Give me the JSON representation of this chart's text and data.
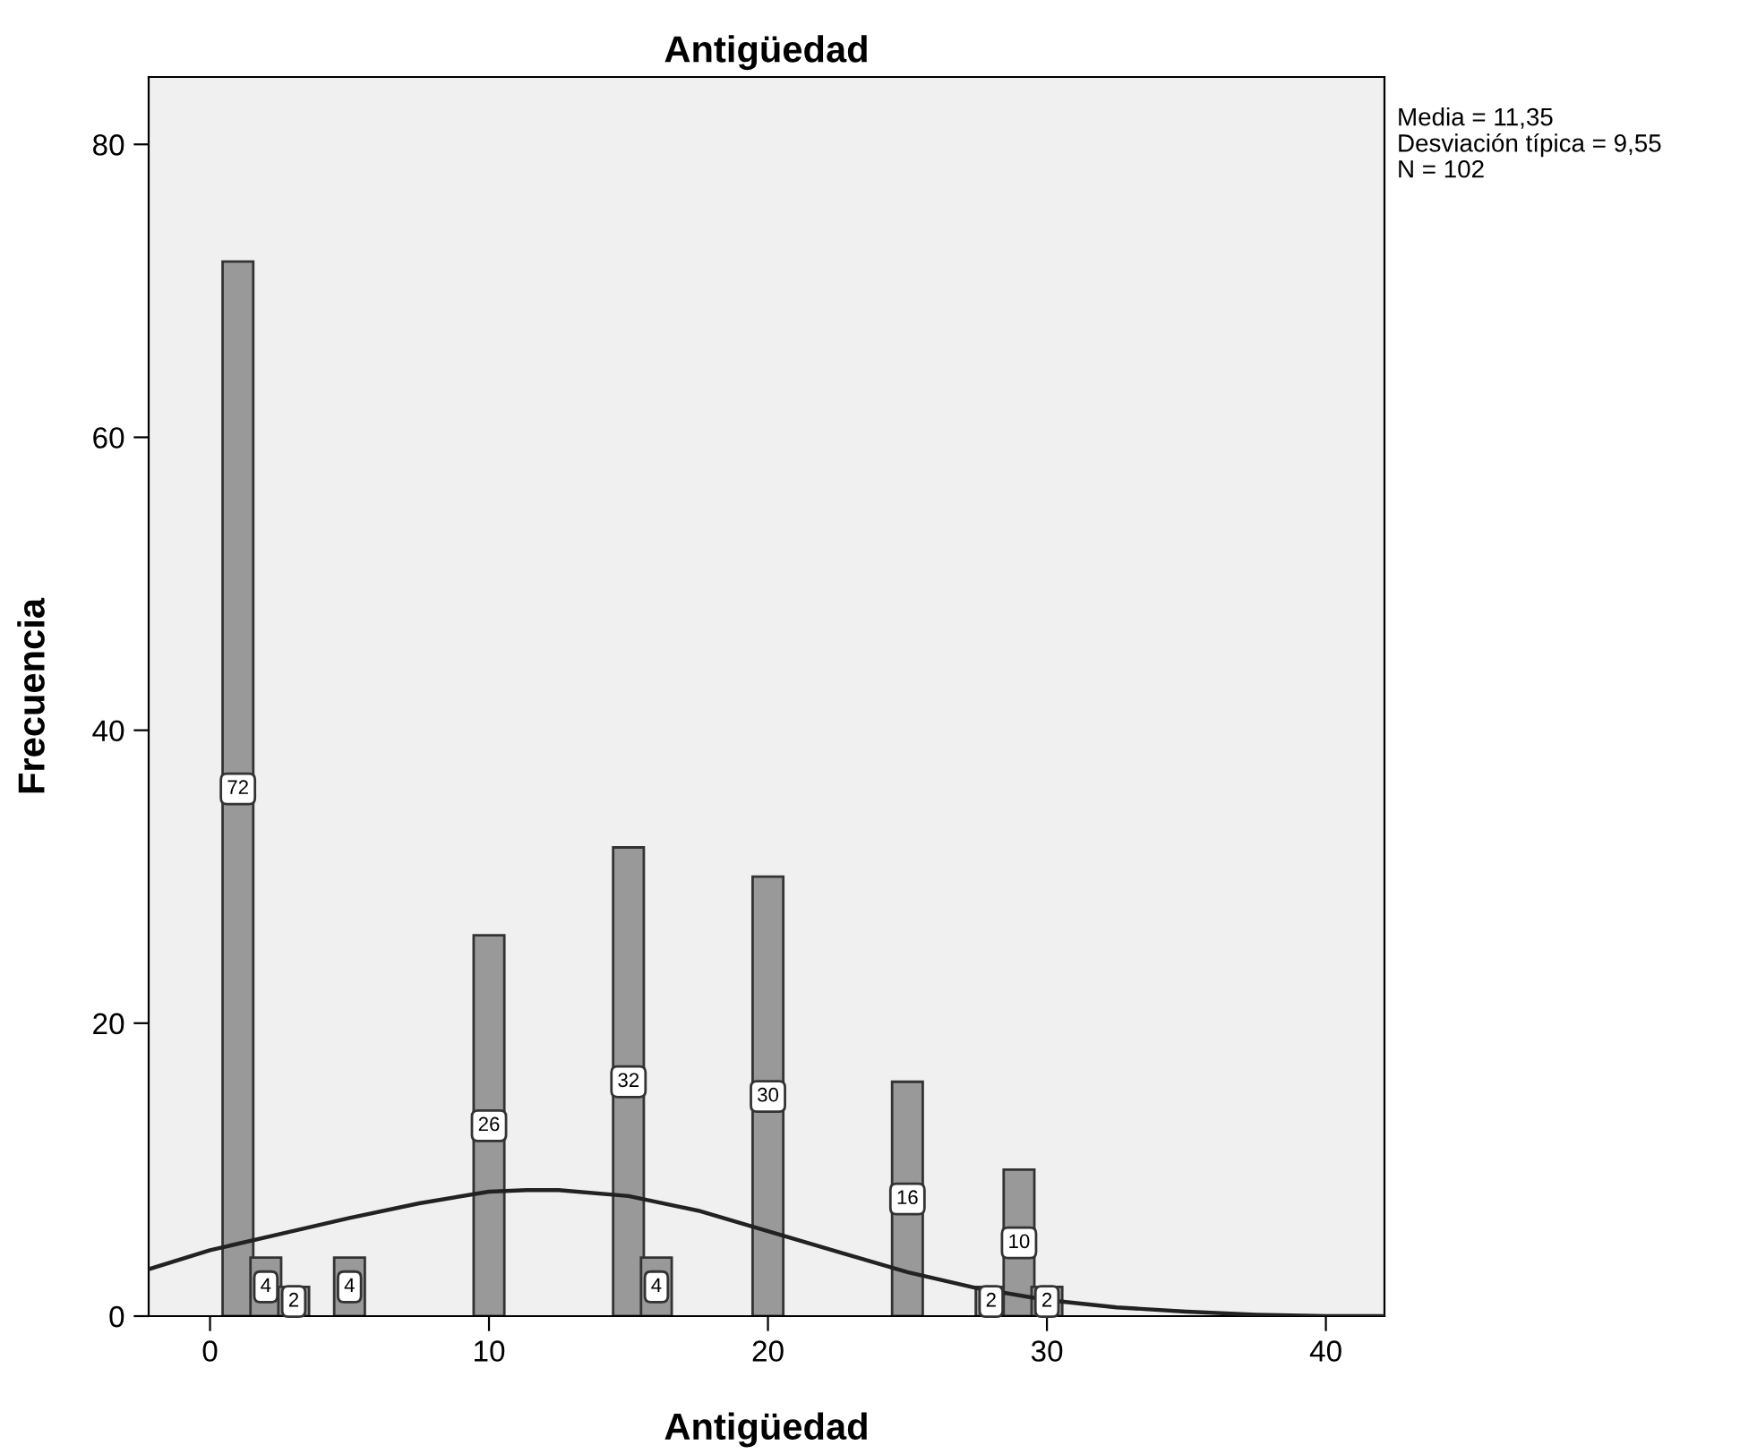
{
  "chart_data": {
    "type": "bar",
    "title": "Antigüedad",
    "xlabel": "Antigüedad",
    "ylabel": "Frecuencia",
    "xlim": [
      -2.2,
      42.1
    ],
    "xticks": [
      0,
      10,
      20,
      30,
      40
    ],
    "ylim": [
      0,
      84.6
    ],
    "yticks": [
      0,
      20,
      40,
      60,
      80
    ],
    "grid": false,
    "legend": false,
    "series": [
      {
        "color": "#999999",
        "x": [
          1,
          2,
          3,
          5,
          10,
          15,
          16,
          20,
          25,
          28,
          29,
          30
        ],
        "values": [
          72,
          4,
          2,
          4,
          26,
          32,
          4,
          30,
          16,
          2,
          10,
          2
        ],
        "value_labels": [
          "72",
          "4",
          "2",
          "4",
          "26",
          "32",
          "4",
          "30",
          "16",
          "2",
          "10",
          "2"
        ]
      },
      {
        "type": "line",
        "color": "#222222",
        "x": [
          -2.2,
          0,
          2.5,
          5,
          7.5,
          10,
          11.35,
          12.5,
          15,
          17.5,
          20,
          22.5,
          25,
          27.5,
          30,
          32.5,
          35,
          37.5,
          40,
          42.1
        ],
        "values": [
          3.2,
          4.5,
          5.6,
          6.7,
          7.7,
          8.5,
          8.6,
          8.6,
          8.2,
          7.2,
          5.8,
          4.4,
          3.0,
          1.9,
          1.1,
          0.6,
          0.3,
          0.1,
          0,
          0
        ]
      }
    ],
    "annotations": [
      "Media = 11,35\nDesviación típica = 9,55\nN = 102"
    ]
  }
}
